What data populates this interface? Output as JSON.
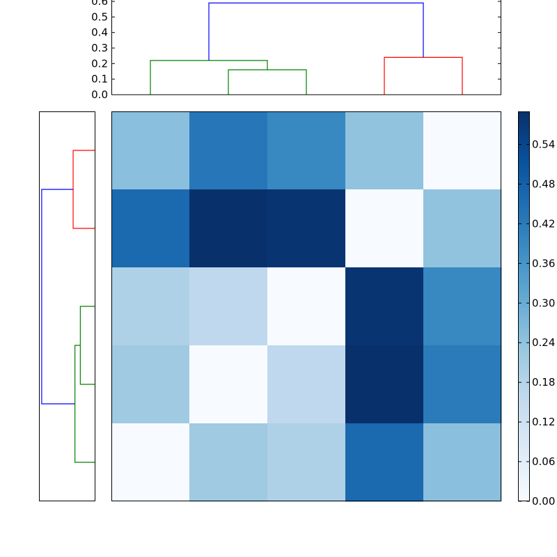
{
  "chart_data": [
    {
      "panel": "top-dendrogram",
      "type": "dendrogram",
      "orientation": "top",
      "title": "",
      "xlabel": "",
      "ylabel": "",
      "ylim": [
        0,
        0.6
      ],
      "yticks": [
        "0.0",
        "0.1",
        "0.2",
        "0.3",
        "0.4",
        "0.5",
        "0.6"
      ],
      "leaf_positions": [
        0,
        1,
        2,
        3,
        4
      ],
      "links": [
        {
          "left": 1.5,
          "left_h": 0,
          "right": 2.5,
          "right_h": 0,
          "height": 0.16,
          "color": "#008000"
        },
        {
          "left": 0.5,
          "left_h": 0,
          "right": 2.0,
          "right_h": 0.16,
          "height": 0.22,
          "color": "#008000"
        },
        {
          "left": 3.5,
          "left_h": 0,
          "right": 4.5,
          "right_h": 0,
          "height": 0.24,
          "color": "#ff0000"
        },
        {
          "left": 1.25,
          "left_h": 0.22,
          "right": 4.0,
          "right_h": 0.24,
          "height": 0.59,
          "color": "#0000ff"
        }
      ]
    },
    {
      "panel": "left-dendrogram",
      "type": "dendrogram",
      "orientation": "left",
      "title": "",
      "links": [
        {
          "left": 2.5,
          "left_h": 0,
          "right": 3.5,
          "right_h": 0,
          "height": 0.16,
          "color": "#008000"
        },
        {
          "left": 3.0,
          "left_h": 0.16,
          "right": 4.5,
          "right_h": 0,
          "height": 0.22,
          "color": "#008000"
        },
        {
          "left": 0.5,
          "left_h": 0,
          "right": 1.5,
          "right_h": 0,
          "height": 0.24,
          "color": "#ff0000"
        },
        {
          "left": 3.75,
          "left_h": 0.22,
          "right": 1.0,
          "right_h": 0.24,
          "height": 0.59,
          "color": "#0000ff"
        }
      ],
      "hlim": [
        0,
        0.6
      ]
    },
    {
      "panel": "heatmap",
      "type": "heatmap",
      "title": "",
      "xlabel": "",
      "ylabel": "",
      "colormap": "Blues",
      "vmin": 0.0,
      "vmax": 0.59,
      "values": [
        [
          0.25,
          0.43,
          0.39,
          0.24,
          0.0
        ],
        [
          0.46,
          0.59,
          0.58,
          0.0,
          0.24
        ],
        [
          0.19,
          0.16,
          0.0,
          0.58,
          0.39
        ],
        [
          0.22,
          0.0,
          0.16,
          0.59,
          0.42
        ],
        [
          0.0,
          0.22,
          0.19,
          0.46,
          0.25
        ]
      ]
    },
    {
      "panel": "colorbar",
      "type": "colorbar",
      "ticks": [
        "0.00",
        "0.06",
        "0.12",
        "0.18",
        "0.24",
        "0.30",
        "0.36",
        "0.42",
        "0.48",
        "0.54"
      ],
      "tick_values": [
        0.0,
        0.06,
        0.12,
        0.18,
        0.24,
        0.3,
        0.36,
        0.42,
        0.48,
        0.54
      ],
      "colormap": "Blues",
      "vmin": 0.0,
      "vmax": 0.59
    }
  ]
}
